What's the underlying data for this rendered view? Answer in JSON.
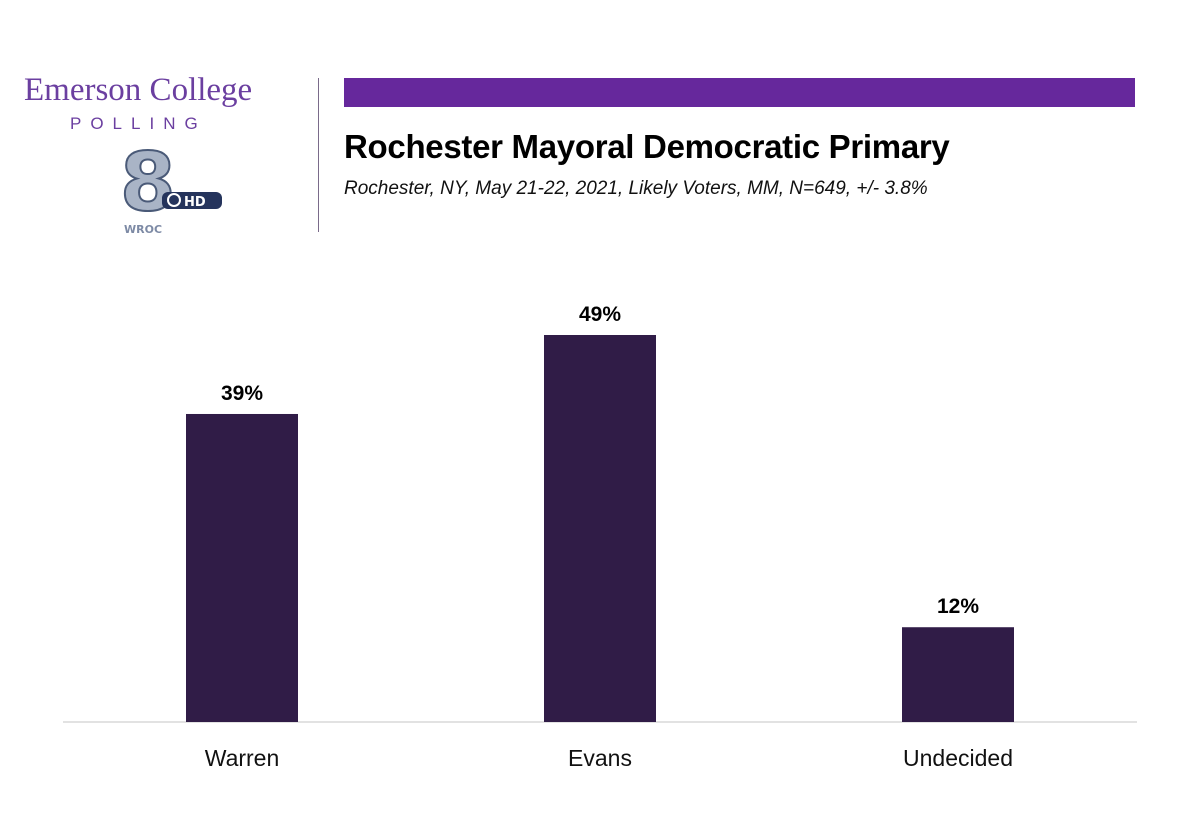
{
  "header": {
    "brand_name": "Emerson College",
    "brand_sub": "POLLING",
    "station_logo_text": "WROC",
    "station_logo_badge": "HD",
    "station_logo_number": "8"
  },
  "colors": {
    "accent": "#66289c",
    "bar": "#301c47",
    "brand_text": "#6b3fa0"
  },
  "chart_data": {
    "type": "bar",
    "title": "Rochester Mayoral Democratic Primary",
    "subtitle": "Rochester, NY, May 21-22, 2021, Likely Voters, MM, N=649, +/- 3.8%",
    "categories": [
      "Warren",
      "Evans",
      "Undecided"
    ],
    "values": [
      39,
      49,
      12
    ],
    "value_labels": [
      "39%",
      "49%",
      "12%"
    ],
    "xlabel": "",
    "ylabel": "",
    "ylim": [
      0,
      49
    ],
    "grid": false,
    "legend": "none"
  }
}
